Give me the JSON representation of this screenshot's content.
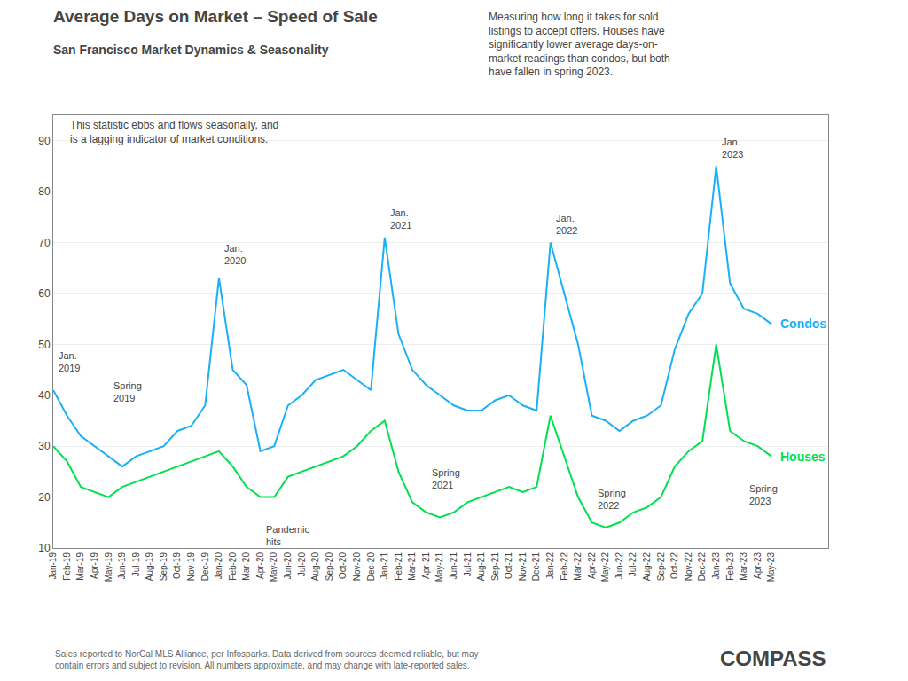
{
  "chart_data": {
    "type": "line",
    "title": "Average Days on Market – Speed of Sale",
    "subtitle": "San Francisco Market Dynamics & Seasonality",
    "notes": [
      "This statistic ebbs and flows seasonally, and\nis a lagging indicator of market conditions.",
      "Measuring how long it takes for sold\nlistings to accept offers. Houses have\nsignificantly lower average days-on-\nmarket readings than condos, but both\nhave fallen in spring 2023."
    ],
    "footnote": "Sales reported to NorCal MLS Alliance, per Infosparks. Data derived from sources deemed reliable, but may\ncontain errors and subject to revision. All numbers approximate, and may change with late-reported sales.",
    "logo": "COMPASS",
    "categories": [
      "Jan-19",
      "Feb-19",
      "Mar-19",
      "Apr-19",
      "May-19",
      "Jun-19",
      "Jul-19",
      "Aug-19",
      "Sep-19",
      "Oct-19",
      "Nov-19",
      "Dec-19",
      "Jan-20",
      "Feb-20",
      "Mar-20",
      "Apr-20",
      "May-20",
      "Jun-20",
      "Jul-20",
      "Aug-20",
      "Sep-20",
      "Oct-20",
      "Nov-20",
      "Dec-20",
      "Jan-21",
      "Feb-21",
      "Mar-21",
      "Apr-21",
      "May-21",
      "Jun-21",
      "Jul-21",
      "Aug-21",
      "Sep-21",
      "Oct-21",
      "Nov-21",
      "Dec-21",
      "Jan-22",
      "Feb-22",
      "Mar-22",
      "Apr-22",
      "May-22",
      "Jun-22",
      "Jul-22",
      "Aug-22",
      "Sep-22",
      "Oct-22",
      "Nov-22",
      "Dec-22",
      "Jan-23",
      "Feb-23",
      "Mar-23",
      "Apr-23",
      "May-23"
    ],
    "series": [
      {
        "name": "Condos",
        "color": "#1ab0f5",
        "values": [
          41,
          36,
          32,
          30,
          28,
          26,
          28,
          29,
          30,
          33,
          34,
          38,
          63,
          45,
          42,
          29,
          30,
          38,
          40,
          43,
          44,
          45,
          43,
          41,
          71,
          52,
          45,
          42,
          40,
          38,
          37,
          37,
          39,
          40,
          38,
          37,
          70,
          60,
          50,
          36,
          35,
          33,
          35,
          36,
          38,
          49,
          56,
          60,
          85,
          62,
          57,
          56,
          54
        ]
      },
      {
        "name": "Houses",
        "color": "#00e050",
        "values": [
          30,
          27,
          22,
          21,
          20,
          22,
          23,
          24,
          25,
          26,
          27,
          28,
          29,
          26,
          22,
          20,
          20,
          24,
          25,
          26,
          27,
          28,
          30,
          33,
          35,
          25,
          19,
          17,
          16,
          17,
          19,
          20,
          21,
          22,
          21,
          22,
          36,
          28,
          20,
          15,
          14,
          15,
          17,
          18,
          20,
          26,
          29,
          31,
          50,
          33,
          31,
          30,
          28
        ]
      }
    ],
    "ylim": [
      10,
      95
    ],
    "yticks": [
      10,
      20,
      30,
      40,
      50,
      60,
      70,
      80,
      90
    ],
    "grid": true,
    "point_labels": [
      {
        "text": "Jan.\n2019",
        "x": "Jan-19",
        "y": 44
      },
      {
        "text": "Jan.\n2020",
        "x": "Jan-20",
        "y": 65
      },
      {
        "text": "Jan.\n2021",
        "x": "Jan-21",
        "y": 72
      },
      {
        "text": "Jan.\n2022",
        "x": "Jan-22",
        "y": 71
      },
      {
        "text": "Jan.\n2023",
        "x": "Jan-23",
        "y": 86
      },
      {
        "text": "Spring\n2019",
        "x": "May-19",
        "y": 38
      },
      {
        "text": "Pandemic\nhits",
        "x": "Apr-20",
        "y": 15
      },
      {
        "text": "Spring\n2021",
        "x": "Apr-21",
        "y": 21
      },
      {
        "text": "Spring\n2022",
        "x": "Apr-22",
        "y": 17
      },
      {
        "text": "Spring\n2023",
        "x": "Mar-23",
        "y": 23
      }
    ]
  }
}
